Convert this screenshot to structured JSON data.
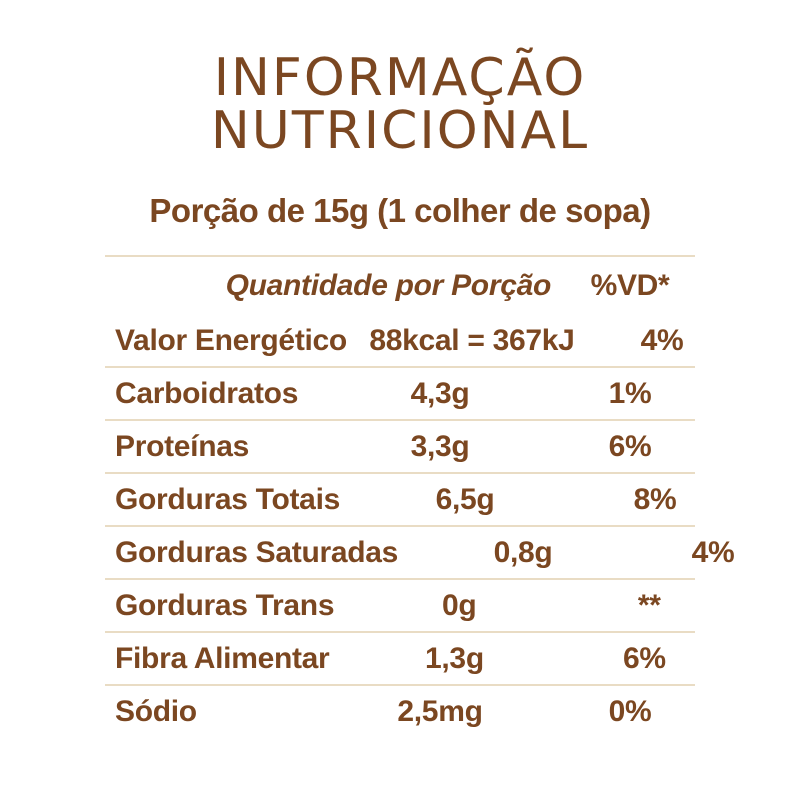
{
  "title": {
    "line1": "INFORMAÇÃO",
    "line2": "NUTRICIONAL"
  },
  "serving": {
    "text": "Porção de 15g (1 colher de sopa)"
  },
  "table": {
    "header": {
      "quantity_label": "Quantidade por Porção",
      "dv_label": "%VD*"
    },
    "rows": [
      {
        "label": "Valor Energético",
        "quantity": "88kcal = 367kJ",
        "dv": "4%"
      },
      {
        "label": "Carboidratos",
        "quantity": "4,3g",
        "dv": "1%"
      },
      {
        "label": "Proteínas",
        "quantity": "3,3g",
        "dv": "6%"
      },
      {
        "label": "Gorduras Totais",
        "quantity": "6,5g",
        "dv": "8%"
      },
      {
        "label": "Gorduras Saturadas",
        "quantity": "0,8g",
        "dv": "4%"
      },
      {
        "label": "Gorduras Trans",
        "quantity": "0g",
        "dv": "**"
      },
      {
        "label": "Fibra Alimentar",
        "quantity": "1,3g",
        "dv": "6%"
      },
      {
        "label": "Sódio",
        "quantity": "2,5mg",
        "dv": "0%"
      }
    ]
  },
  "colors": {
    "text_brown": "#7b4721",
    "divider_beige": "#e9dcc4",
    "background": "#ffffff"
  }
}
